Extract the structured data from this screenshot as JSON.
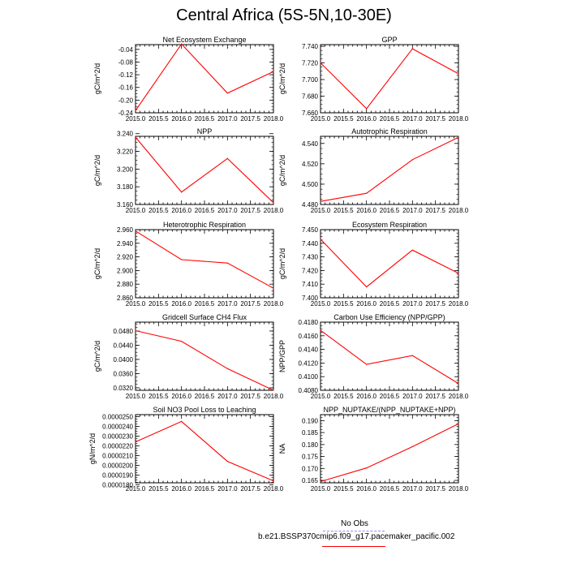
{
  "title": "Central Africa (5S-5N,10-30E)",
  "legend": {
    "obs_label": "No Obs",
    "obs_color": "#8c8cff",
    "model_label": "b.e21.BSSP370cmip6.f09_g17.pacemaker_pacific.002",
    "model_color": "#ff0000"
  },
  "chart_data": [
    {
      "type": "line",
      "title": "Net Ecosystem Exchange",
      "ylabel": "gC/m^2/d",
      "x": [
        2015,
        2016,
        2017,
        2018
      ],
      "values": [
        -0.233,
        -0.023,
        -0.178,
        -0.11
      ],
      "xlim": [
        2015,
        2018
      ],
      "ylim": [
        -0.24,
        -0.025
      ],
      "yticks": [
        "-0.04",
        "-0.08",
        "-0.12",
        "-0.16",
        "-0.20",
        "-0.24"
      ],
      "ytick_values": [
        -0.04,
        -0.08,
        -0.12,
        -0.16,
        -0.2,
        -0.24
      ],
      "xticks": [
        "2015.0",
        "2015.5",
        "2016.0",
        "2016.5",
        "2017.0",
        "2017.5",
        "2018.0"
      ]
    },
    {
      "type": "line",
      "title": "GPP",
      "ylabel": "gC/m^2/d",
      "x": [
        2015,
        2016,
        2017,
        2018
      ],
      "values": [
        7.72,
        7.665,
        7.737,
        7.707
      ],
      "xlim": [
        2015,
        2018
      ],
      "ylim": [
        7.66,
        7.742
      ],
      "yticks": [
        "7.740",
        "7.720",
        "7.700",
        "7.680",
        "7.660"
      ],
      "ytick_values": [
        7.74,
        7.72,
        7.7,
        7.68,
        7.66
      ],
      "xticks": [
        "2015.0",
        "2015.5",
        "2016.0",
        "2016.5",
        "2017.0",
        "2017.5",
        "2018.0"
      ]
    },
    {
      "type": "line",
      "title": "NPP",
      "ylabel": "gC/m^2/d",
      "x": [
        2015,
        2016,
        2017,
        2018
      ],
      "values": [
        3.236,
        3.174,
        3.212,
        3.162
      ],
      "xlim": [
        2015,
        2018
      ],
      "ylim": [
        3.16,
        3.237
      ],
      "yticks": [
        "3.240",
        "3.220",
        "3.200",
        "3.180",
        "3.160"
      ],
      "ytick_values": [
        3.24,
        3.22,
        3.2,
        3.18,
        3.16
      ],
      "xticks": [
        "2015.0",
        "2015.5",
        "2016.0",
        "2016.5",
        "2017.0",
        "2017.5",
        "2018.0"
      ]
    },
    {
      "type": "line",
      "title": "Autotrophic Respiration",
      "ylabel": "gC/m^2/d",
      "x": [
        2015,
        2016,
        2017,
        2018
      ],
      "values": [
        4.483,
        4.491,
        4.524,
        4.546
      ],
      "xlim": [
        2015,
        2018
      ],
      "ylim": [
        4.48,
        4.547
      ],
      "yticks": [
        "4.540",
        "4.520",
        "4.500",
        "4.480"
      ],
      "ytick_values": [
        4.54,
        4.52,
        4.5,
        4.48
      ],
      "xticks": [
        "2015.0",
        "2015.5",
        "2016.0",
        "2016.5",
        "2017.0",
        "2017.5",
        "2018.0"
      ]
    },
    {
      "type": "line",
      "title": "Heterotrophic Respiration",
      "ylabel": "gC/m^2/d",
      "x": [
        2015,
        2016,
        2017,
        2018
      ],
      "values": [
        2.958,
        2.916,
        2.911,
        2.874
      ],
      "xlim": [
        2015,
        2018
      ],
      "ylim": [
        2.86,
        2.96
      ],
      "yticks": [
        "2.960",
        "2.940",
        "2.920",
        "2.900",
        "2.880",
        "2.860"
      ],
      "ytick_values": [
        2.96,
        2.94,
        2.92,
        2.9,
        2.88,
        2.86
      ],
      "xticks": [
        "2015.0",
        "2015.5",
        "2016.0",
        "2016.5",
        "2017.0",
        "2017.5",
        "2018.0"
      ]
    },
    {
      "type": "line",
      "title": "Ecosystem Respiration",
      "ylabel": "gC/m^2/d",
      "x": [
        2015,
        2016,
        2017,
        2018
      ],
      "values": [
        7.443,
        7.408,
        7.435,
        7.418
      ],
      "xlim": [
        2015,
        2018
      ],
      "ylim": [
        7.4,
        7.45
      ],
      "yticks": [
        "7.450",
        "7.440",
        "7.430",
        "7.420",
        "7.410",
        "7.400"
      ],
      "ytick_values": [
        7.45,
        7.44,
        7.43,
        7.42,
        7.41,
        7.4
      ],
      "xticks": [
        "2015.0",
        "2015.5",
        "2016.0",
        "2016.5",
        "2017.0",
        "2017.5",
        "2018.0"
      ]
    },
    {
      "type": "line",
      "title": "Gridcell Surface CH4 Flux",
      "ylabel": "gC/m^2/d",
      "x": [
        2015,
        2016,
        2017,
        2018
      ],
      "values": [
        0.0481,
        0.0451,
        0.0374,
        0.0313
      ],
      "xlim": [
        2015,
        2018
      ],
      "ylim": [
        0.0313,
        0.0505
      ],
      "yticks": [
        "0.0480",
        "0.0440",
        "0.0400",
        "0.0360",
        "0.0320"
      ],
      "ytick_values": [
        0.048,
        0.044,
        0.04,
        0.036,
        0.032
      ],
      "xticks": [
        "2015.0",
        "2015.5",
        "2016.0",
        "2016.5",
        "2017.0",
        "2017.5",
        "2018.0"
      ]
    },
    {
      "type": "line",
      "title": "Carbon Use Efficiency (NPP/GPP)",
      "ylabel": "NPP/GPP",
      "x": [
        2015,
        2016,
        2017,
        2018
      ],
      "values": [
        0.4168,
        0.4118,
        0.4131,
        0.409
      ],
      "xlim": [
        2015,
        2018
      ],
      "ylim": [
        0.408,
        0.418
      ],
      "yticks": [
        "0.4180",
        "0.4160",
        "0.4140",
        "0.4120",
        "0.4100",
        "0.4080"
      ],
      "ytick_values": [
        0.418,
        0.416,
        0.414,
        0.412,
        0.41,
        0.408
      ],
      "xticks": [
        "2015.0",
        "2015.5",
        "2016.0",
        "2016.5",
        "2017.0",
        "2017.5",
        "2018.0"
      ]
    },
    {
      "type": "line",
      "title": "Soil NO3 Pool Loss to Leaching",
      "ylabel": "gN/m^2/d",
      "x": [
        2015,
        2016,
        2017,
        2018
      ],
      "values": [
        2.24e-05,
        2.45e-05,
        2.04e-05,
        1.84e-05
      ],
      "xlim": [
        2015,
        2018
      ],
      "ylim": [
        1.82e-05,
        2.52e-05
      ],
      "yticks": [
        "0.0000250",
        "0.0000240",
        "0.0000230",
        "0.0000220",
        "0.0000210",
        "0.0000200",
        "0.0000190",
        "0.0000180"
      ],
      "ytick_values": [
        2.5e-05,
        2.4e-05,
        2.3e-05,
        2.2e-05,
        2.1e-05,
        2e-05,
        1.9e-05,
        1.8e-05
      ],
      "xticks": [
        "2015.0",
        "2015.5",
        "2016.0",
        "2016.5",
        "2017.0",
        "2017.5",
        "2018.0"
      ]
    },
    {
      "type": "line",
      "title": "NPP_NUPTAKE/(NPP_NUPTAKE+NPP)",
      "ylabel": "NA",
      "x": [
        2015,
        2016,
        2017,
        2018
      ],
      "values": [
        0.1645,
        0.1702,
        0.1791,
        0.1887
      ],
      "xlim": [
        2015,
        2018
      ],
      "ylim": [
        0.164,
        0.1925
      ],
      "yticks": [
        "0.190",
        "0.185",
        "0.180",
        "0.175",
        "0.170",
        "0.165"
      ],
      "ytick_values": [
        0.19,
        0.185,
        0.18,
        0.175,
        0.17,
        0.165
      ],
      "xticks": [
        "2015.0",
        "2015.5",
        "2016.0",
        "2016.5",
        "2017.0",
        "2017.5",
        "2018.0"
      ]
    }
  ]
}
